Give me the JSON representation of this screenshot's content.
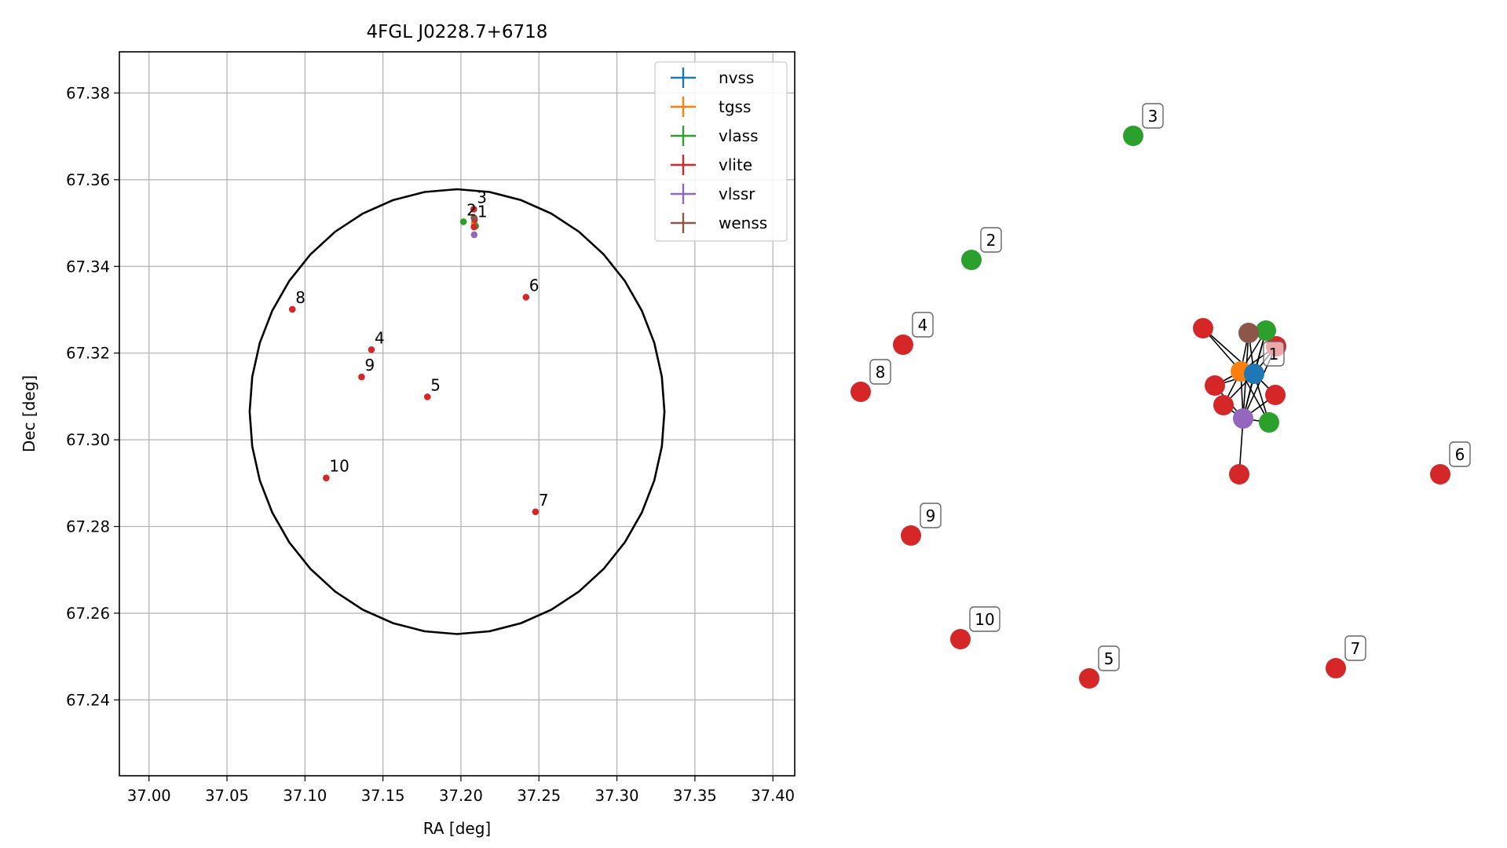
{
  "colors": {
    "nvss": "#1f77b4",
    "tgss": "#ff7f0e",
    "vlass": "#2ca02c",
    "vlite": "#d62728",
    "vlssr": "#9467bd",
    "wenss": "#8c564b",
    "grid": "#b0b0b0",
    "circle": "#000000"
  },
  "chart_data": [
    {
      "type": "scatter",
      "title": "4FGL J0228.7+6718",
      "xlabel": "RA [deg]",
      "ylabel": "Dec [deg]",
      "xlim": [
        36.981,
        37.414
      ],
      "ylim": [
        67.2225,
        67.3895
      ],
      "x_ticks": [
        "37.00",
        "37.05",
        "37.10",
        "37.15",
        "37.20",
        "37.25",
        "37.30",
        "37.35",
        "37.40"
      ],
      "y_ticks": [
        "67.24",
        "67.26",
        "67.28",
        "67.30",
        "67.32",
        "67.34",
        "67.36",
        "67.38"
      ],
      "grid": true,
      "legend_position": "upper right",
      "legend": [
        "nvss",
        "tgss",
        "vlass",
        "vlite",
        "vlssr",
        "wenss"
      ],
      "circle": {
        "center": [
          37.1975,
          67.3065
        ],
        "radius_dec": 0.0513
      },
      "series": [
        {
          "name": "nvss",
          "points": [
            [
              37.2087,
              67.3497
            ]
          ]
        },
        {
          "name": "tgss",
          "points": [
            [
              37.2085,
              67.3499
            ]
          ]
        },
        {
          "name": "vlass",
          "points": [
            [
              37.2016,
              67.3503
            ],
            [
              37.2094,
              67.3493
            ]
          ]
        },
        {
          "name": "vlite",
          "points": [
            [
              37.2082,
              67.3532
            ],
            [
              37.2087,
              67.3508
            ],
            [
              37.2084,
              67.3491
            ],
            [
              37.1426,
              67.3208
            ],
            [
              37.1785,
              67.3099
            ],
            [
              37.2417,
              67.3329
            ],
            [
              37.2478,
              67.2834
            ],
            [
              37.0919,
              67.3301
            ],
            [
              37.1363,
              67.3145
            ],
            [
              37.1136,
              67.2912
            ]
          ]
        },
        {
          "name": "vlssr",
          "points": [
            [
              37.2085,
              67.3473
            ]
          ]
        },
        {
          "name": "wenss",
          "points": [
            [
              37.2084,
              67.3512
            ]
          ]
        }
      ],
      "annotations": [
        {
          "text": "1",
          "x": 37.2085,
          "y": 67.3499
        },
        {
          "text": "2",
          "x": 37.2016,
          "y": 67.3503
        },
        {
          "text": "3",
          "x": 37.2082,
          "y": 67.3532
        },
        {
          "text": "4",
          "x": 37.1426,
          "y": 67.3208
        },
        {
          "text": "5",
          "x": 37.1785,
          "y": 67.3099
        },
        {
          "text": "6",
          "x": 37.2417,
          "y": 67.3329
        },
        {
          "text": "7",
          "x": 37.2478,
          "y": 67.2834
        },
        {
          "text": "8",
          "x": 37.0919,
          "y": 67.3301
        },
        {
          "text": "9",
          "x": 37.1363,
          "y": 67.3145
        },
        {
          "text": "10",
          "x": 37.1136,
          "y": 67.2912
        }
      ]
    },
    {
      "type": "network",
      "nodes": [
        {
          "id": "n1",
          "survey": "nvss",
          "label": "1"
        },
        {
          "id": "n2",
          "survey": "tgss",
          "label": ""
        },
        {
          "id": "n3",
          "survey": "wenss",
          "label": ""
        },
        {
          "id": "n4",
          "survey": "vlssr",
          "label": ""
        },
        {
          "id": "n5",
          "survey": "vlass",
          "label": ""
        },
        {
          "id": "n6",
          "survey": "vlass",
          "label": ""
        },
        {
          "id": "n7",
          "survey": "vlite",
          "label": ""
        },
        {
          "id": "n8",
          "survey": "vlite",
          "label": ""
        },
        {
          "id": "n9",
          "survey": "vlite",
          "label": ""
        },
        {
          "id": "n10",
          "survey": "vlite",
          "label": ""
        },
        {
          "id": "n11",
          "survey": "vlite",
          "label": ""
        },
        {
          "id": "n12",
          "survey": "vlite",
          "label": ""
        },
        {
          "id": "n13",
          "survey": "vlass",
          "label": "2"
        },
        {
          "id": "n14",
          "survey": "vlass",
          "label": "3"
        },
        {
          "id": "n15",
          "survey": "vlite",
          "label": "4"
        },
        {
          "id": "n16",
          "survey": "vlite",
          "label": "8"
        },
        {
          "id": "n17",
          "survey": "vlite",
          "label": "6"
        },
        {
          "id": "n18",
          "survey": "vlite",
          "label": "9"
        },
        {
          "id": "n19",
          "survey": "vlite",
          "label": "10"
        },
        {
          "id": "n20",
          "survey": "vlite",
          "label": "5"
        },
        {
          "id": "n21",
          "survey": "vlite",
          "label": "7"
        }
      ],
      "edges": [
        [
          "n7",
          "n2"
        ],
        [
          "n7",
          "n1"
        ],
        [
          "n3",
          "n2"
        ],
        [
          "n3",
          "n1"
        ],
        [
          "n3",
          "n4"
        ],
        [
          "n5",
          "n2"
        ],
        [
          "n5",
          "n1"
        ],
        [
          "n5",
          "n4"
        ],
        [
          "n8",
          "n1"
        ],
        [
          "n8",
          "n4"
        ],
        [
          "n8",
          "n2"
        ],
        [
          "n9",
          "n2"
        ],
        [
          "n9",
          "n1"
        ],
        [
          "n9",
          "n4"
        ],
        [
          "n10",
          "n2"
        ],
        [
          "n10",
          "n4"
        ],
        [
          "n10",
          "n1"
        ],
        [
          "n11",
          "n1"
        ],
        [
          "n11",
          "n4"
        ],
        [
          "n12",
          "n4"
        ],
        [
          "n6",
          "n1"
        ],
        [
          "n6",
          "n4"
        ],
        [
          "n6",
          "n2"
        ],
        [
          "n2",
          "n1"
        ],
        [
          "n2",
          "n4"
        ],
        [
          "n1",
          "n4"
        ]
      ]
    }
  ]
}
